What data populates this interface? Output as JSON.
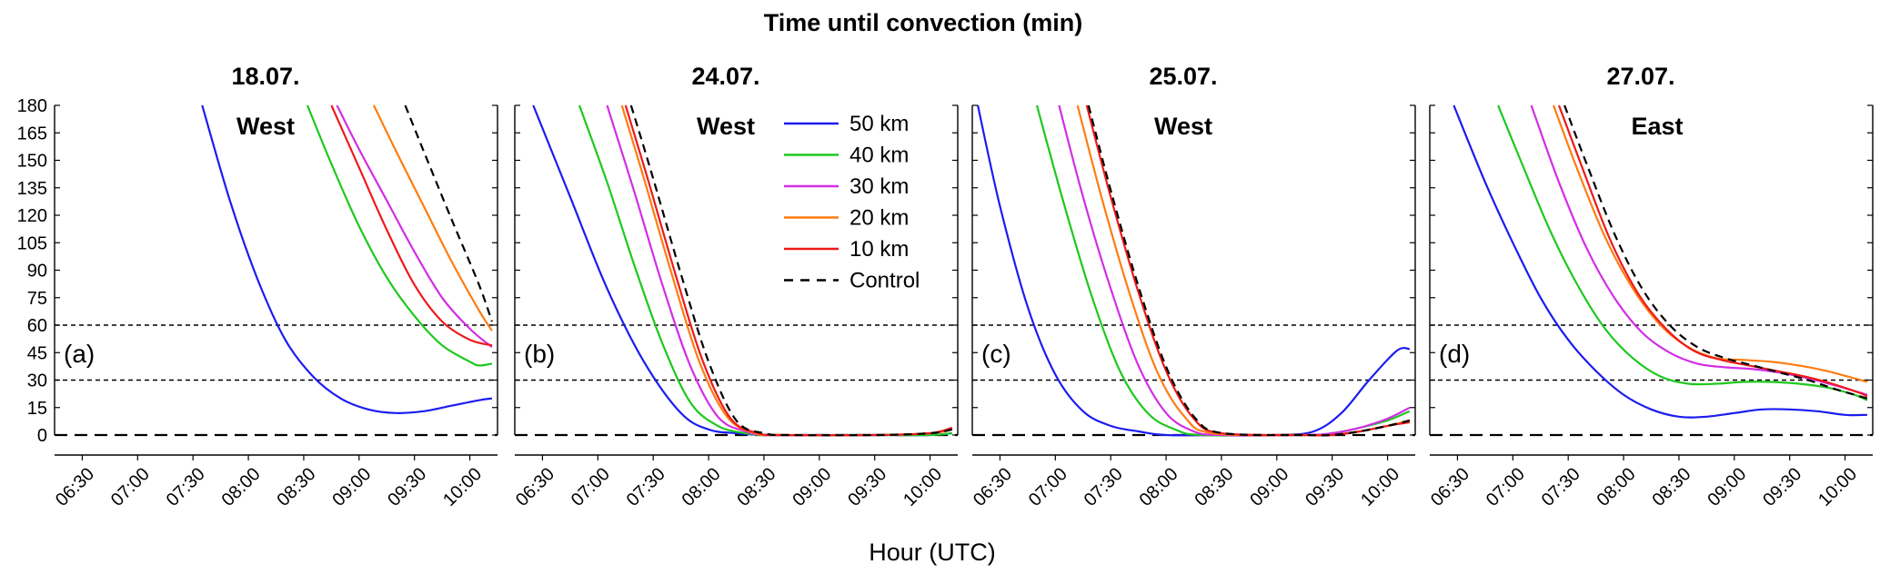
{
  "figure": {
    "title": "Time until convection (min)",
    "xlabel": "Hour (UTC)"
  },
  "colors": {
    "50 km": "#1c1cf0",
    "40 km": "#1ec81e",
    "30 km": "#d22ee6",
    "20 km": "#ff7c10",
    "10 km": "#ee1a1a",
    "Control": "#000000"
  },
  "legend": [
    "50 km",
    "40 km",
    "30 km",
    "20 km",
    "10 km",
    "Control"
  ],
  "chart_data": [
    {
      "type": "line",
      "panel": "(a)",
      "date": "18.07.",
      "region": "West",
      "xlabel": "Hour (UTC)",
      "ylabel": "Time until convection (min)",
      "ylim": [
        0,
        180
      ],
      "xlim": [
        "06:15",
        "10:15"
      ],
      "yticks": [
        "0",
        "15",
        "30",
        "45",
        "60",
        "75",
        "90",
        "105",
        "120",
        "135",
        "150",
        "165",
        "180"
      ],
      "xticks": [
        "06:30",
        "07:00",
        "07:30",
        "08:00",
        "08:30",
        "09:00",
        "09:30",
        "10:00"
      ],
      "reference_lines": [
        60,
        30,
        0
      ],
      "series": [
        {
          "name": "50 km",
          "x": [
            "07:35",
            "07:50",
            "08:05",
            "08:20",
            "08:35",
            "08:50",
            "09:05",
            "09:20",
            "09:35",
            "09:50",
            "10:05",
            "10:12"
          ],
          "values": [
            180,
            128,
            85,
            52,
            32,
            20,
            14,
            12,
            13,
            16,
            19,
            20
          ]
        },
        {
          "name": "40 km",
          "x": [
            "08:32",
            "08:45",
            "09:00",
            "09:15",
            "09:30",
            "09:45",
            "10:00",
            "10:05",
            "10:12"
          ],
          "values": [
            180,
            148,
            114,
            86,
            65,
            49,
            40,
            38,
            39
          ]
        },
        {
          "name": "30 km",
          "x": [
            "08:48",
            "09:00",
            "09:15",
            "09:30",
            "09:45",
            "10:00",
            "10:12"
          ],
          "values": [
            180,
            156,
            128,
            100,
            75,
            58,
            48
          ]
        },
        {
          "name": "20 km",
          "x": [
            "09:08",
            "09:20",
            "09:35",
            "09:50",
            "10:05",
            "10:12"
          ],
          "values": [
            180,
            155,
            125,
            95,
            68,
            57
          ]
        },
        {
          "name": "10 km",
          "x": [
            "08:45",
            "09:00",
            "09:15",
            "09:30",
            "09:45",
            "10:00",
            "10:12"
          ],
          "values": [
            180,
            146,
            112,
            82,
            62,
            52,
            49
          ]
        },
        {
          "name": "Control",
          "x": [
            "09:25",
            "09:35",
            "09:50",
            "10:05",
            "10:12"
          ],
          "values": [
            180,
            155,
            118,
            82,
            62
          ]
        }
      ]
    },
    {
      "type": "line",
      "panel": "(b)",
      "date": "24.07.",
      "region": "West",
      "xlabel": "Hour (UTC)",
      "ylim": [
        0,
        180
      ],
      "xlim": [
        "06:15",
        "10:15"
      ],
      "yticks": [
        "0",
        "15",
        "30",
        "45",
        "60",
        "75",
        "90",
        "105",
        "120",
        "135",
        "150",
        "165",
        "180"
      ],
      "xticks": [
        "06:30",
        "07:00",
        "07:30",
        "08:00",
        "08:30",
        "09:00",
        "09:30",
        "10:00"
      ],
      "reference_lines": [
        60,
        30,
        0
      ],
      "series": [
        {
          "name": "50 km",
          "x": [
            "06:25",
            "06:45",
            "07:05",
            "07:25",
            "07:45",
            "08:00",
            "08:15",
            "08:30",
            "09:00",
            "09:30",
            "10:00",
            "10:12"
          ],
          "values": [
            180,
            130,
            80,
            40,
            12,
            3,
            1,
            0,
            0,
            0,
            0,
            1
          ]
        },
        {
          "name": "40 km",
          "x": [
            "06:50",
            "07:05",
            "07:20",
            "07:35",
            "07:50",
            "08:05",
            "08:20",
            "08:35",
            "09:30",
            "10:00",
            "10:12"
          ],
          "values": [
            180,
            138,
            92,
            50,
            18,
            5,
            1,
            0,
            0,
            0,
            1
          ]
        },
        {
          "name": "30 km",
          "x": [
            "07:05",
            "07:20",
            "07:35",
            "07:50",
            "08:05",
            "08:20",
            "08:35",
            "09:30",
            "10:00",
            "10:12"
          ],
          "values": [
            180,
            132,
            82,
            38,
            10,
            2,
            0,
            0,
            1,
            3
          ]
        },
        {
          "name": "20 km",
          "x": [
            "07:13",
            "07:25",
            "07:40",
            "07:55",
            "08:10",
            "08:25",
            "08:40",
            "09:30",
            "10:00",
            "10:12"
          ],
          "values": [
            180,
            140,
            88,
            40,
            10,
            1,
            0,
            0,
            1,
            3
          ]
        },
        {
          "name": "10 km",
          "x": [
            "07:15",
            "07:27",
            "07:42",
            "07:57",
            "08:12",
            "08:27",
            "08:40",
            "09:30",
            "10:00",
            "10:12"
          ],
          "values": [
            180,
            140,
            88,
            40,
            9,
            1,
            0,
            0,
            1,
            4
          ]
        },
        {
          "name": "Control",
          "x": [
            "07:18",
            "07:30",
            "07:45",
            "08:00",
            "08:15",
            "08:30",
            "08:45",
            "09:30",
            "10:00",
            "10:12"
          ],
          "values": [
            180,
            140,
            88,
            40,
            8,
            1,
            0,
            0,
            1,
            3
          ]
        }
      ]
    },
    {
      "type": "line",
      "panel": "(c)",
      "date": "25.07.",
      "region": "West",
      "xlabel": "Hour (UTC)",
      "ylim": [
        0,
        180
      ],
      "xlim": [
        "06:15",
        "10:15"
      ],
      "yticks": [
        "0",
        "15",
        "30",
        "45",
        "60",
        "75",
        "90",
        "105",
        "120",
        "135",
        "150",
        "165",
        "180"
      ],
      "xticks": [
        "06:30",
        "07:00",
        "07:30",
        "08:00",
        "08:30",
        "09:00",
        "09:30",
        "10:00"
      ],
      "reference_lines": [
        60,
        30,
        0
      ],
      "series": [
        {
          "name": "50 km",
          "x": [
            "06:18",
            "06:30",
            "06:45",
            "07:00",
            "07:15",
            "07:30",
            "07:45",
            "08:00",
            "08:30",
            "09:00",
            "09:20",
            "09:35",
            "09:50",
            "10:05",
            "10:12"
          ],
          "values": [
            180,
            125,
            70,
            33,
            13,
            5,
            2,
            0,
            0,
            0,
            2,
            12,
            30,
            46,
            47
          ]
        },
        {
          "name": "40 km",
          "x": [
            "06:50",
            "07:05",
            "07:20",
            "07:35",
            "07:50",
            "08:05",
            "08:20",
            "09:15",
            "09:30",
            "09:45",
            "10:00",
            "10:12"
          ],
          "values": [
            180,
            125,
            75,
            35,
            12,
            3,
            0,
            0,
            1,
            4,
            8,
            13
          ]
        },
        {
          "name": "30 km",
          "x": [
            "07:02",
            "07:15",
            "07:30",
            "07:45",
            "08:00",
            "08:15",
            "08:30",
            "09:15",
            "09:30",
            "09:45",
            "10:00",
            "10:12"
          ],
          "values": [
            180,
            130,
            80,
            38,
            12,
            2,
            0,
            0,
            1,
            4,
            9,
            15
          ]
        },
        {
          "name": "20 km",
          "x": [
            "07:12",
            "07:25",
            "07:40",
            "07:55",
            "08:10",
            "08:25",
            "09:15",
            "09:30",
            "09:45",
            "10:00",
            "10:12"
          ],
          "values": [
            180,
            130,
            78,
            35,
            10,
            1,
            0,
            0,
            2,
            5,
            8
          ]
        },
        {
          "name": "10 km",
          "x": [
            "07:17",
            "07:30",
            "07:45",
            "08:00",
            "08:15",
            "08:30",
            "09:15",
            "09:30",
            "09:45",
            "10:00",
            "10:12"
          ],
          "values": [
            180,
            130,
            78,
            35,
            9,
            1,
            0,
            0,
            2,
            5,
            7
          ]
        },
        {
          "name": "Control",
          "x": [
            "07:18",
            "07:31",
            "07:46",
            "08:01",
            "08:16",
            "08:31",
            "09:15",
            "09:30",
            "09:45",
            "10:00",
            "10:12"
          ],
          "values": [
            180,
            130,
            78,
            35,
            9,
            1,
            0,
            0,
            2,
            5,
            8
          ]
        }
      ]
    },
    {
      "type": "line",
      "panel": "(d)",
      "date": "27.07.",
      "region": "East",
      "xlabel": "Hour (UTC)",
      "ylim": [
        0,
        180
      ],
      "xlim": [
        "06:15",
        "10:15"
      ],
      "yticks": [
        "0",
        "15",
        "30",
        "45",
        "60",
        "75",
        "90",
        "105",
        "120",
        "135",
        "150",
        "165",
        "180"
      ],
      "xticks": [
        "06:30",
        "07:00",
        "07:30",
        "08:00",
        "08:30",
        "09:00",
        "09:30",
        "10:00"
      ],
      "reference_lines": [
        60,
        30,
        0
      ],
      "series": [
        {
          "name": "50 km",
          "x": [
            "06:28",
            "06:45",
            "07:00",
            "07:15",
            "07:30",
            "07:45",
            "08:00",
            "08:15",
            "08:30",
            "08:45",
            "09:00",
            "09:15",
            "09:30",
            "09:45",
            "10:00",
            "10:12"
          ],
          "values": [
            180,
            138,
            105,
            75,
            52,
            35,
            22,
            14,
            10,
            10,
            12,
            14,
            14,
            13,
            11,
            11
          ]
        },
        {
          "name": "40 km",
          "x": [
            "06:52",
            "07:05",
            "07:20",
            "07:35",
            "07:50",
            "08:05",
            "08:20",
            "08:35",
            "08:50",
            "09:05",
            "09:20",
            "09:35",
            "09:50",
            "10:05",
            "10:12"
          ],
          "values": [
            180,
            148,
            112,
            82,
            58,
            42,
            32,
            28,
            28,
            29,
            29,
            28,
            26,
            22,
            19
          ]
        },
        {
          "name": "30 km",
          "x": [
            "07:10",
            "07:25",
            "07:40",
            "07:55",
            "08:10",
            "08:25",
            "08:40",
            "08:55",
            "09:10",
            "09:25",
            "09:40",
            "09:55",
            "10:12"
          ],
          "values": [
            180,
            138,
            102,
            75,
            56,
            45,
            39,
            37,
            36,
            34,
            31,
            27,
            22
          ]
        },
        {
          "name": "20 km",
          "x": [
            "07:22",
            "07:35",
            "07:50",
            "08:05",
            "08:20",
            "08:35",
            "08:50",
            "09:05",
            "09:20",
            "09:35",
            "09:50",
            "10:05",
            "10:12"
          ],
          "values": [
            180,
            145,
            108,
            80,
            60,
            48,
            42,
            41,
            40,
            38,
            35,
            31,
            29
          ]
        },
        {
          "name": "10 km",
          "x": [
            "07:25",
            "07:38",
            "07:53",
            "08:08",
            "08:23",
            "08:38",
            "08:53",
            "09:08",
            "09:23",
            "09:38",
            "09:53",
            "10:08",
            "10:12"
          ],
          "values": [
            180,
            145,
            106,
            77,
            58,
            46,
            41,
            38,
            35,
            32,
            28,
            23,
            21
          ]
        },
        {
          "name": "Control",
          "x": [
            "07:28",
            "07:40",
            "07:55",
            "08:10",
            "08:25",
            "08:40",
            "08:55",
            "09:10",
            "09:25",
            "09:40",
            "09:55",
            "10:12"
          ],
          "values": [
            180,
            148,
            110,
            80,
            60,
            48,
            42,
            38,
            34,
            30,
            25,
            20
          ]
        }
      ]
    }
  ]
}
